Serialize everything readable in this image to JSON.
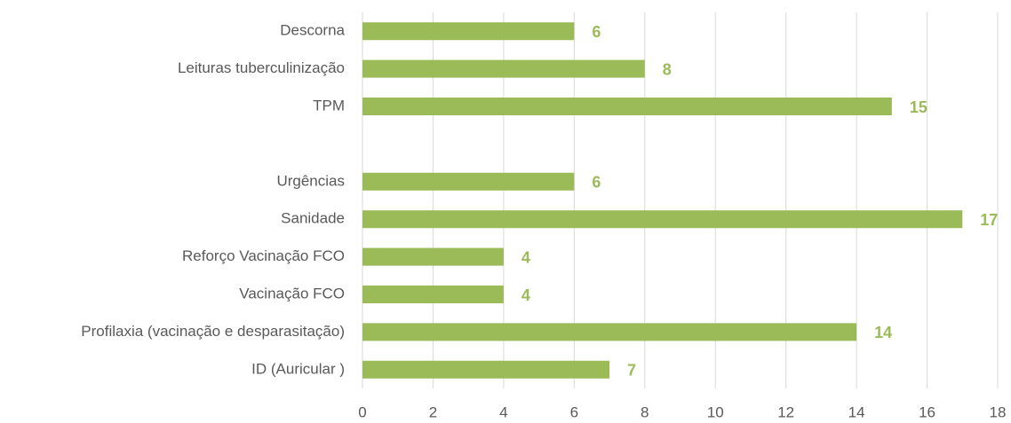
{
  "chart_data": {
    "type": "hbar",
    "categories": [
      "Descorna",
      "Leituras tuberculinização",
      "TPM",
      null,
      "Urgências",
      "Sanidade",
      "Reforço Vacinação FCO",
      "Vacinação FCO",
      "Profilaxia (vacinação e desparasitação)",
      "ID (Auricular )"
    ],
    "values": [
      6,
      8,
      15,
      null,
      6,
      17,
      4,
      4,
      14,
      7
    ],
    "color": "#9bbb59",
    "xlim": [
      0,
      18
    ],
    "xticks": [
      0,
      2,
      4,
      6,
      8,
      10,
      12,
      14,
      16,
      18
    ],
    "grid": true
  }
}
